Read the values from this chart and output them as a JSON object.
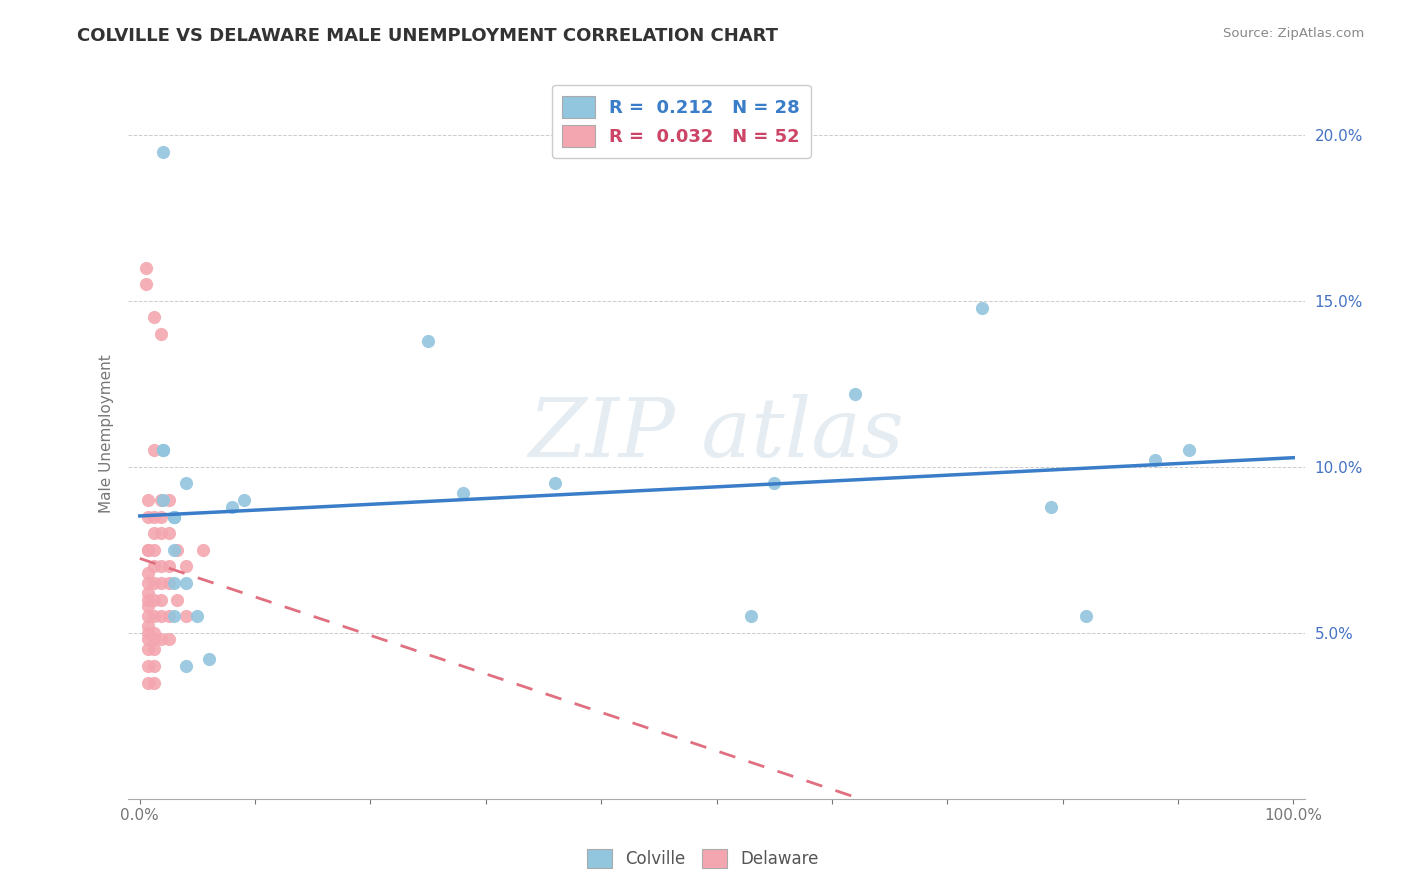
{
  "title": "COLVILLE VS DELAWARE MALE UNEMPLOYMENT CORRELATION CHART",
  "source": "Source: ZipAtlas.com",
  "ylabel": "Male Unemployment",
  "xlim": [
    -0.01,
    1.01
  ],
  "ylim": [
    0.0,
    0.22
  ],
  "x_ticks": [
    0.0,
    0.1,
    0.2,
    0.3,
    0.4,
    0.5,
    0.6,
    0.7,
    0.8,
    0.9,
    1.0
  ],
  "y_ticks": [
    0.0,
    0.05,
    0.1,
    0.15,
    0.2
  ],
  "colville_R": 0.212,
  "colville_N": 28,
  "delaware_R": 0.032,
  "delaware_N": 52,
  "colville_color": "#92c5de",
  "delaware_color": "#f4a6b0",
  "trendline_colville_color": "#3a7dc9",
  "trendline_delaware_color": "#e07080",
  "colville_x": [
    0.02,
    0.02,
    0.02,
    0.02,
    0.03,
    0.03,
    0.03,
    0.03,
    0.03,
    0.03,
    0.04,
    0.04,
    0.04,
    0.05,
    0.06,
    0.08,
    0.09,
    0.25,
    0.28,
    0.36,
    0.53,
    0.55,
    0.62,
    0.73,
    0.79,
    0.82,
    0.88,
    0.91
  ],
  "colville_y": [
    0.195,
    0.105,
    0.105,
    0.09,
    0.085,
    0.085,
    0.085,
    0.075,
    0.065,
    0.055,
    0.095,
    0.065,
    0.04,
    0.055,
    0.042,
    0.088,
    0.09,
    0.138,
    0.092,
    0.095,
    0.055,
    0.095,
    0.122,
    0.148,
    0.088,
    0.055,
    0.102,
    0.105
  ],
  "delaware_x": [
    0.005,
    0.005,
    0.007,
    0.007,
    0.007,
    0.007,
    0.007,
    0.007,
    0.007,
    0.007,
    0.007,
    0.007,
    0.007,
    0.007,
    0.007,
    0.007,
    0.007,
    0.007,
    0.012,
    0.012,
    0.012,
    0.012,
    0.012,
    0.012,
    0.012,
    0.012,
    0.012,
    0.012,
    0.012,
    0.012,
    0.012,
    0.012,
    0.018,
    0.018,
    0.018,
    0.018,
    0.018,
    0.018,
    0.018,
    0.018,
    0.018,
    0.025,
    0.025,
    0.025,
    0.025,
    0.025,
    0.025,
    0.032,
    0.032,
    0.04,
    0.04,
    0.055
  ],
  "delaware_y": [
    0.16,
    0.155,
    0.09,
    0.085,
    0.075,
    0.075,
    0.068,
    0.065,
    0.062,
    0.06,
    0.058,
    0.055,
    0.052,
    0.05,
    0.048,
    0.045,
    0.04,
    0.035,
    0.145,
    0.105,
    0.085,
    0.08,
    0.075,
    0.07,
    0.065,
    0.06,
    0.055,
    0.05,
    0.048,
    0.045,
    0.04,
    0.035,
    0.14,
    0.09,
    0.085,
    0.08,
    0.07,
    0.065,
    0.06,
    0.055,
    0.048,
    0.09,
    0.08,
    0.07,
    0.065,
    0.055,
    0.048,
    0.075,
    0.06,
    0.07,
    0.055,
    0.075
  ]
}
